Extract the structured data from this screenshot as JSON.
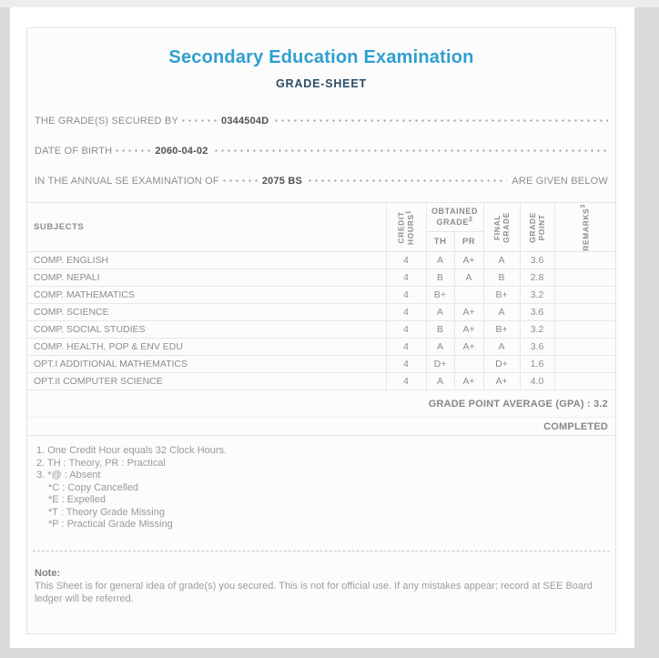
{
  "colors": {
    "title_accent": "#2e9fd0",
    "subtitle": "#2a4d66",
    "page_background": "#dbdbdb",
    "card_background": "#fcfcfc",
    "text_gray": "#8b8d90"
  },
  "header": {
    "title": "Secondary Education Examination",
    "subtitle": "GRADE-SHEET"
  },
  "info_lines": [
    {
      "label": "THE GRADE(S) SECURED BY",
      "value": "0344504D",
      "suffix": ""
    },
    {
      "label": "DATE OF BIRTH",
      "value": "2060-04-02",
      "suffix": ""
    },
    {
      "label": "IN THE ANNUAL SE EXAMINATION OF",
      "value": "2075 BS",
      "suffix": "ARE GIVEN BELOW"
    }
  ],
  "table": {
    "columns": {
      "subjects": "SUBJECTS",
      "credit_hours": {
        "label": "CREDIT HOURS",
        "sup": "1"
      },
      "obtained_grade": {
        "label": "OBTAINED GRADE",
        "sup": "2"
      },
      "th": "TH",
      "pr": "PR",
      "final_grade": "FINAL GRADE",
      "grade_point": "GRADE POINT",
      "remarks": {
        "label": "REMARKS",
        "sup": "3"
      }
    },
    "rows": [
      {
        "subject": "COMP. ENGLISH",
        "credit": "4",
        "th": "A",
        "pr": "A+",
        "final": "A",
        "gp": "3.6",
        "remarks": ""
      },
      {
        "subject": "COMP. NEPALI",
        "credit": "4",
        "th": "B",
        "pr": "A",
        "final": "B",
        "gp": "2.8",
        "remarks": ""
      },
      {
        "subject": "COMP. MATHEMATICS",
        "credit": "4",
        "th": "B+",
        "pr": "",
        "final": "B+",
        "gp": "3.2",
        "remarks": ""
      },
      {
        "subject": "COMP. SCIENCE",
        "credit": "4",
        "th": "A",
        "pr": "A+",
        "final": "A",
        "gp": "3.6",
        "remarks": ""
      },
      {
        "subject": "COMP. SOCIAL STUDIES",
        "credit": "4",
        "th": "B",
        "pr": "A+",
        "final": "B+",
        "gp": "3.2",
        "remarks": ""
      },
      {
        "subject": "COMP. HEALTH, POP & ENV EDU",
        "credit": "4",
        "th": "A",
        "pr": "A+",
        "final": "A",
        "gp": "3.6",
        "remarks": ""
      },
      {
        "subject": "OPT.I ADDITIONAL MATHEMATICS",
        "credit": "4",
        "th": "D+",
        "pr": "",
        "final": "D+",
        "gp": "1.6",
        "remarks": ""
      },
      {
        "subject": "OPT.II COMPUTER SCIENCE",
        "credit": "4",
        "th": "A",
        "pr": "A+",
        "final": "A+",
        "gp": "4.0",
        "remarks": ""
      }
    ],
    "gpa_text": "GRADE POINT AVERAGE (GPA) : 3.2",
    "status_text": "COMPLETED"
  },
  "footnotes": [
    {
      "text": "1. One Credit Hour equals 32 Clock Hours.",
      "indent": 0
    },
    {
      "text": "2. TH : Theory, PR : Practical",
      "indent": 0
    },
    {
      "text": "3. *@ : Absent",
      "indent": 0
    },
    {
      "text": "*C : Copy Cancelled",
      "indent": 1
    },
    {
      "text": "*E : Expelled",
      "indent": 1
    },
    {
      "text": "*T : Theory Grade Missing",
      "indent": 1
    },
    {
      "text": "*P : Practical Grade Missing",
      "indent": 1
    }
  ],
  "note": {
    "title": "Note:",
    "text": "This Sheet is for general idea of grade(s) you secured. This is not for official use. If any mistakes appear; record at SEE Board ledger will be referred."
  }
}
